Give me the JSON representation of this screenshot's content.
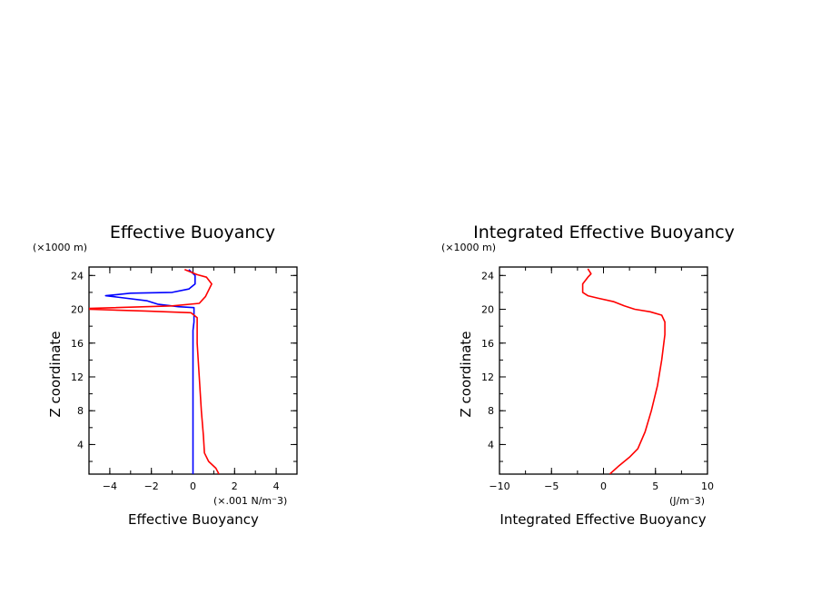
{
  "chart_data": [
    {
      "type": "line",
      "title": "Effective Buoyancy",
      "xlabel": "Effective Buoyancy",
      "ylabel": "Z coordinate",
      "x_unit": "(×.001 N/m⁻3)",
      "y_unit": "(×1000 m)",
      "xlim": [
        -5,
        5
      ],
      "ylim": [
        0.5,
        25
      ],
      "x_ticks": [
        -4,
        -2,
        0,
        2,
        4
      ],
      "x_tick_labels": [
        "−4",
        "−2",
        "0",
        "2",
        "4"
      ],
      "y_ticks": [
        4,
        8,
        12,
        16,
        20,
        24
      ],
      "y_tick_labels": [
        "4",
        "8",
        "12",
        "16",
        "20",
        "24"
      ],
      "series": [
        {
          "color": "#0000ff",
          "points": [
            [
              0,
              0.5
            ],
            [
              0,
              17.5
            ],
            [
              0.05,
              18.5
            ],
            [
              0.05,
              20.2
            ],
            [
              -0.7,
              20.3
            ],
            [
              -1.7,
              20.6
            ],
            [
              -2.2,
              21.0
            ],
            [
              -3.5,
              21.4
            ],
            [
              -4.2,
              21.6
            ],
            [
              -3.0,
              21.9
            ],
            [
              -1.0,
              22.0
            ],
            [
              -0.2,
              22.4
            ],
            [
              0.1,
              23.0
            ],
            [
              0.1,
              24.0
            ],
            [
              -0.2,
              24.7
            ]
          ]
        },
        {
          "color": "#ff0000",
          "points": [
            [
              1.25,
              0.5
            ],
            [
              1.1,
              1.2
            ],
            [
              0.75,
              2.0
            ],
            [
              0.55,
              3.0
            ],
            [
              0.5,
              5.0
            ],
            [
              0.4,
              8.0
            ],
            [
              0.3,
              12.0
            ],
            [
              0.2,
              16.0
            ],
            [
              0.2,
              19.0
            ],
            [
              -0.1,
              19.6
            ],
            [
              -2.3,
              19.8
            ],
            [
              -5.0,
              20.0
            ],
            [
              -5.0,
              20.1
            ],
            [
              -1.0,
              20.4
            ],
            [
              0.3,
              20.7
            ],
            [
              0.6,
              21.5
            ],
            [
              0.9,
              23.0
            ],
            [
              0.65,
              23.8
            ],
            [
              0.2,
              24.1
            ],
            [
              -0.4,
              24.7
            ]
          ]
        }
      ]
    },
    {
      "type": "line",
      "title": "Integrated Effective Buoyancy",
      "xlabel": "Integrated Effective Buoyancy",
      "ylabel": "Z coordinate",
      "x_unit": "(J/m⁻3)",
      "y_unit": "(×1000 m)",
      "xlim": [
        -10,
        10
      ],
      "ylim": [
        0.5,
        25
      ],
      "x_ticks": [
        -10,
        -5,
        0,
        5,
        10
      ],
      "x_tick_labels": [
        "−10",
        "−5",
        "0",
        "5",
        "10"
      ],
      "y_ticks": [
        4,
        8,
        12,
        16,
        20,
        24
      ],
      "y_tick_labels": [
        "4",
        "8",
        "12",
        "16",
        "20",
        "24"
      ],
      "series": [
        {
          "color": "#ff0000",
          "points": [
            [
              0.6,
              0.5
            ],
            [
              1.5,
              1.5
            ],
            [
              2.5,
              2.5
            ],
            [
              3.3,
              3.5
            ],
            [
              4.0,
              5.5
            ],
            [
              4.6,
              8.0
            ],
            [
              5.2,
              11.0
            ],
            [
              5.6,
              14.0
            ],
            [
              5.9,
              17.0
            ],
            [
              5.9,
              18.5
            ],
            [
              5.6,
              19.3
            ],
            [
              4.5,
              19.7
            ],
            [
              3.0,
              20.0
            ],
            [
              2.0,
              20.4
            ],
            [
              1.0,
              20.9
            ],
            [
              -0.5,
              21.3
            ],
            [
              -1.5,
              21.6
            ],
            [
              -2.0,
              22.0
            ],
            [
              -2.0,
              23.0
            ],
            [
              -1.5,
              23.8
            ],
            [
              -1.2,
              24.2
            ],
            [
              -1.5,
              24.8
            ]
          ]
        }
      ]
    }
  ]
}
